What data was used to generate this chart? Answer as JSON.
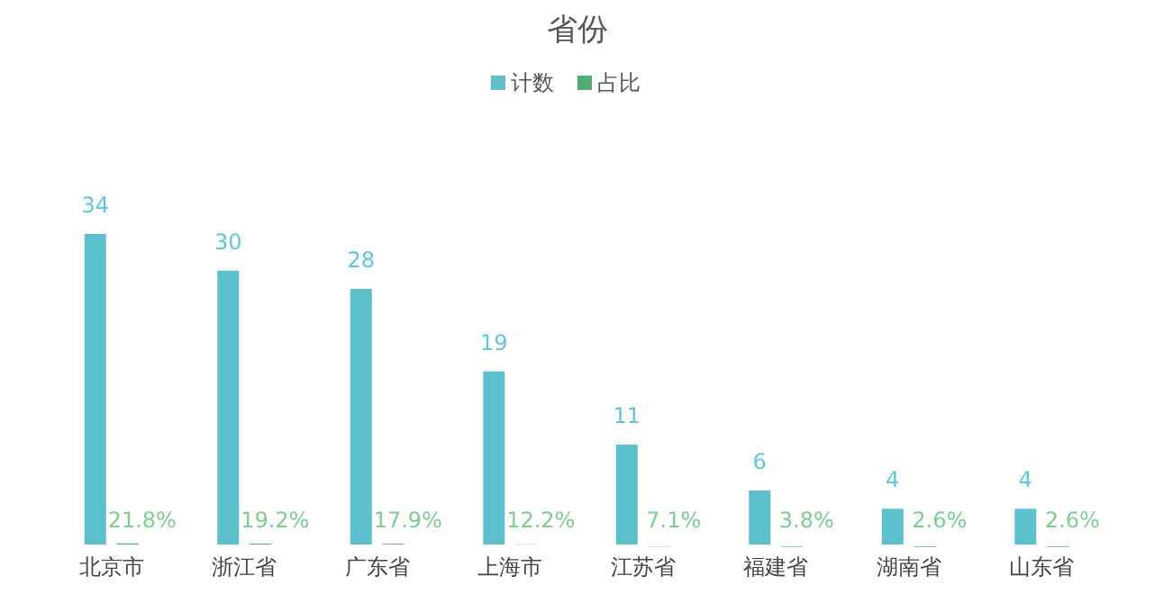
{
  "chart_data": {
    "type": "bar",
    "title": "省份",
    "categories": [
      "北京市",
      "浙江省",
      "广东省",
      "上海市",
      "江苏省",
      "福建省",
      "湖南省",
      "山东省"
    ],
    "series": [
      {
        "name": "计数",
        "color": "#5bc0cc",
        "values": [
          34,
          30,
          28,
          19,
          11,
          6,
          4,
          4
        ],
        "value_labels": [
          "34",
          "30",
          "28",
          "19",
          "11",
          "6",
          "4",
          "4"
        ]
      },
      {
        "name": "占比",
        "color": "#4caf73",
        "values": [
          0.218,
          0.192,
          0.179,
          0.122,
          0.071,
          0.038,
          0.026,
          0.026
        ],
        "value_labels": [
          "21.8%",
          "19.2%",
          "17.9%",
          "12.2%",
          "7.1%",
          "3.8%",
          "2.6%",
          "2.6%"
        ]
      }
    ],
    "legend": "top"
  }
}
